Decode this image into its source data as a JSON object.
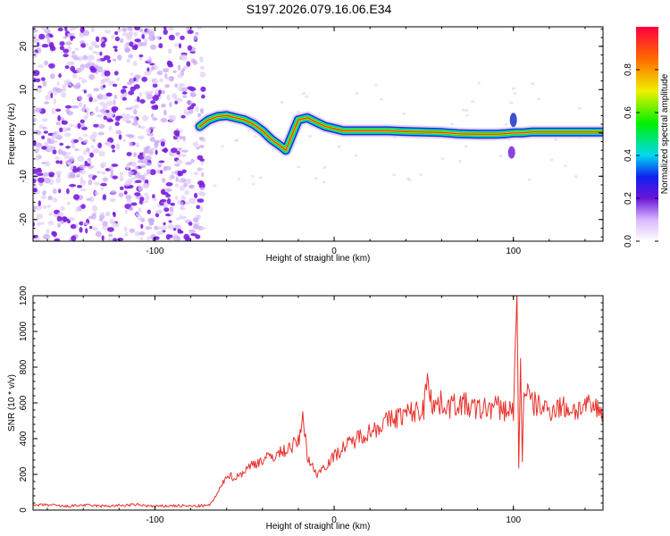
{
  "figure_title": "S197.2026.079.16.06.E34",
  "colors": {
    "snr_line": "#e8302a",
    "scatter_purple": "#7a1ee0",
    "trace_outline": "#1a30c8"
  },
  "chart_data": [
    {
      "type": "heatmap",
      "title": "",
      "xlabel": "Height of straight line (km)",
      "ylabel": "Frequency (Hz)",
      "xlim": [
        -168,
        150
      ],
      "ylim": [
        -25,
        24.5
      ],
      "xticks": [
        -100,
        0,
        100
      ],
      "yticks": [
        -20,
        -10,
        0,
        10,
        20
      ],
      "noise_region_x": [
        -168,
        -73
      ],
      "trace": {
        "x": [
          -75,
          -70,
          -65,
          -60,
          -55,
          -50,
          -45,
          -40,
          -35,
          -30,
          -27,
          -25,
          -22,
          -20,
          -15,
          -10,
          -5,
          0,
          5,
          10,
          20,
          30,
          40,
          50,
          60,
          70,
          80,
          90,
          95,
          100,
          105,
          110,
          120,
          130,
          140,
          150
        ],
        "frequency_hz": [
          1.5,
          3,
          3.8,
          4,
          3.5,
          3,
          2,
          0.5,
          -1.5,
          -3,
          -4,
          -2,
          1,
          3,
          3.5,
          2.5,
          1.5,
          1,
          0.5,
          0.5,
          0.5,
          0.5,
          0.3,
          0.2,
          0.1,
          -0.2,
          -0.3,
          -0.3,
          -0.2,
          0,
          0,
          0.2,
          0.2,
          0.2,
          0.2,
          0.2
        ]
      },
      "colorbar": {
        "label": "Normalized spectral amplitude",
        "range": [
          0,
          1
        ],
        "ticks": [
          0.0,
          0.2,
          0.4,
          0.6,
          0.8
        ]
      }
    },
    {
      "type": "line",
      "title": "",
      "xlabel": "Height of straight line (km)",
      "ylabel": "SNR (10 * v/v)",
      "xlim": [
        -168,
        150
      ],
      "ylim": [
        0,
        1200
      ],
      "xticks": [
        -100,
        0,
        100
      ],
      "yticks": [
        0,
        200,
        400,
        600,
        800,
        1000,
        1200
      ],
      "series": [
        {
          "name": "SNR",
          "x": [
            -168,
            -160,
            -150,
            -140,
            -130,
            -120,
            -110,
            -100,
            -90,
            -80,
            -70,
            -67,
            -62,
            -60,
            -55,
            -50,
            -45,
            -40,
            -35,
            -30,
            -25,
            -20,
            -17,
            -15,
            -10,
            -5,
            0,
            5,
            10,
            15,
            20,
            25,
            30,
            35,
            40,
            45,
            50,
            52,
            55,
            60,
            65,
            70,
            75,
            80,
            85,
            90,
            95,
            100,
            102,
            103,
            104,
            105,
            106,
            110,
            115,
            120,
            125,
            130,
            135,
            140,
            145,
            150
          ],
          "values": [
            25,
            30,
            20,
            28,
            22,
            25,
            30,
            20,
            25,
            22,
            25,
            60,
            150,
            200,
            180,
            220,
            260,
            280,
            300,
            320,
            350,
            380,
            520,
            300,
            200,
            250,
            300,
            350,
            380,
            420,
            440,
            470,
            500,
            520,
            540,
            550,
            560,
            780,
            580,
            600,
            580,
            600,
            580,
            560,
            570,
            580,
            560,
            560,
            1150,
            250,
            820,
            300,
            700,
            600,
            580,
            560,
            580,
            570,
            560,
            580,
            570,
            560
          ]
        }
      ]
    }
  ]
}
